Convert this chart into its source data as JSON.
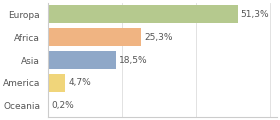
{
  "categories": [
    "Europa",
    "Africa",
    "Asia",
    "America",
    "Oceania"
  ],
  "values": [
    51.3,
    25.3,
    18.5,
    4.7,
    0.2
  ],
  "labels": [
    "51,3%",
    "25,3%",
    "18,5%",
    "4,7%",
    "0,2%"
  ],
  "bar_colors": [
    "#b5c98e",
    "#f0b482",
    "#8fa8c8",
    "#f0d57a",
    "#d0d0d0"
  ],
  "background_color": "#ffffff",
  "xlim": [
    0,
    62
  ],
  "grid_color": "#dddddd",
  "spine_color": "#cccccc",
  "text_color": "#555555",
  "label_fontsize": 6.5,
  "tick_fontsize": 6.5,
  "bar_height": 0.78
}
